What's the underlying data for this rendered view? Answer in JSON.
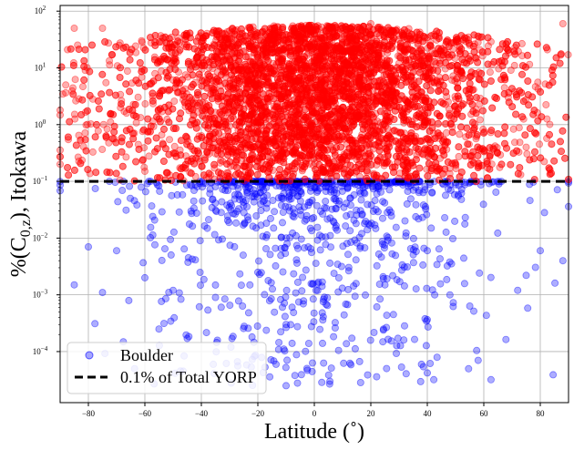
{
  "chart_data": {
    "type": "scatter",
    "xlabel": "Latitude (˚)",
    "ylabel": "%(C0,z), Itokawa",
    "ylabel_parts": {
      "prefix": "%(C",
      "sub": "0,z",
      "suffix": "), Itokawa"
    },
    "xlim": [
      -90,
      90
    ],
    "ylim_log10": [
      -4.9,
      2.1
    ],
    "yscale": "log",
    "x_ticks": [
      -80,
      -60,
      -40,
      -20,
      0,
      20,
      40,
      60,
      80
    ],
    "x_tick_labels": [
      "−80",
      "−60",
      "−40",
      "−20",
      "0",
      "20",
      "40",
      "60",
      "80"
    ],
    "y_tick_exponents": [
      -4,
      -3,
      -2,
      -1,
      0,
      1,
      2
    ],
    "y_tick_base": "10",
    "grid": true,
    "threshold": {
      "y": 0.1,
      "label": "0.1% of Total YORP",
      "color": "#000000",
      "style": "dashed"
    },
    "legend": {
      "placement": "bottom-left",
      "entries": [
        "Boulder",
        "0.1% of Total YORP"
      ]
    },
    "series": [
      {
        "name": "Boulder",
        "color_above_threshold": "#ff0000",
        "color_below_threshold": "#0000ff",
        "point_count_above": 6000,
        "point_count_below": 900,
        "note_values": "dense cloud centered near latitude 0, values spread from ~2e-5 to ~60"
      }
    ],
    "sample_points": [
      [
        -90,
        0.2
      ],
      [
        -88,
        5.0
      ],
      [
        -85,
        0.0015
      ],
      [
        -80,
        0.007
      ],
      [
        -75,
        50
      ],
      [
        -70,
        0.006
      ],
      [
        -60,
        0.002
      ],
      [
        -55,
        0.00025
      ],
      [
        -50,
        0.0012
      ],
      [
        -45,
        0.00017
      ],
      [
        -35,
        0.0009
      ],
      [
        -20,
        0.0025
      ],
      [
        -10,
        0.0003
      ],
      [
        -10,
        2.5e-05
      ],
      [
        3,
        0.00036
      ],
      [
        25,
        0.0015
      ],
      [
        28,
        0.00045
      ],
      [
        40,
        4.2e-05
      ],
      [
        40,
        0.006
      ],
      [
        48,
        0.001
      ],
      [
        58,
        7e-05
      ],
      [
        72,
        0.0012
      ],
      [
        75,
        0.0022
      ],
      [
        80,
        0.006
      ],
      [
        88,
        0.004
      ],
      [
        88,
        60
      ],
      [
        75,
        0.4
      ],
      [
        -85,
        50
      ],
      [
        0,
        40
      ],
      [
        20,
        60
      ],
      [
        -30,
        45
      ],
      [
        55,
        25
      ]
    ]
  }
}
